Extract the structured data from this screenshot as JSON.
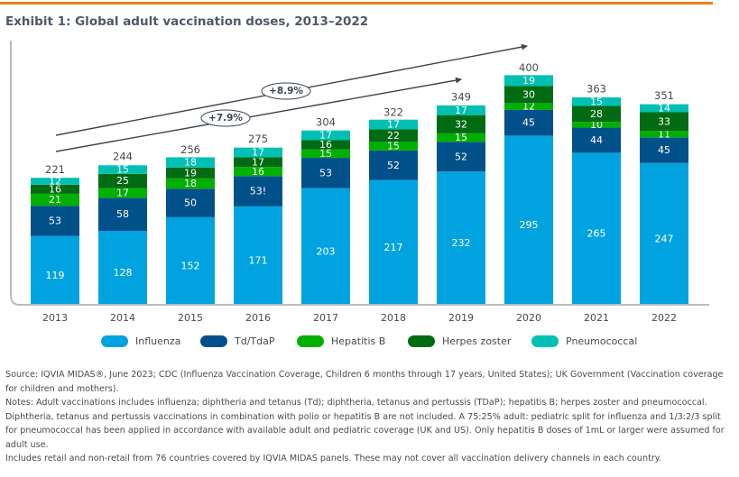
{
  "header": {
    "title": "Exhibit 1: Global adult vaccination doses, 2013–2022",
    "accent_color": "#f07d1a"
  },
  "chart_data": {
    "type": "bar",
    "stacked": true,
    "title": "Exhibit 1: Global adult vaccination doses, 2013–2022",
    "xlabel": "",
    "ylabel": "",
    "ylim": [
      0,
      400
    ],
    "grid": false,
    "legend_position": "bottom",
    "categories": [
      "2013",
      "2014",
      "2015",
      "2016",
      "2017",
      "2018",
      "2019",
      "2020",
      "2021",
      "2022"
    ],
    "series": [
      {
        "name": "Influenza",
        "color": "#00a3e0",
        "values": [
          119,
          128,
          152,
          171,
          203,
          217,
          232,
          295,
          265,
          247
        ],
        "labels": [
          "119",
          "128",
          "152",
          "171",
          "203",
          "217",
          "232",
          "295",
          "265",
          "247"
        ]
      },
      {
        "name": "Td/TdaP",
        "color": "#00508a",
        "values": [
          53,
          58,
          50,
          53,
          53,
          52,
          52,
          45,
          44,
          45
        ],
        "labels": [
          "53",
          "58",
          "50",
          "53!",
          "53",
          "52",
          "52",
          "45",
          "44",
          "45"
        ]
      },
      {
        "name": "Hepatitis B",
        "color": "#00b000",
        "values": [
          21,
          17,
          18,
          16,
          15,
          15,
          15,
          12,
          10,
          11
        ],
        "labels": [
          "21",
          "17",
          "18",
          "16",
          "15",
          "15",
          "15",
          "12",
          "10",
          "11"
        ]
      },
      {
        "name": "Herpes zoster",
        "color": "#006b12",
        "values": [
          16,
          25,
          19,
          17,
          16,
          22,
          32,
          30,
          28,
          33
        ],
        "labels": [
          "16",
          "25",
          "19",
          "17",
          "16",
          "22",
          "32",
          "30",
          "28",
          "33"
        ]
      },
      {
        "name": "Pneumococcal",
        "color": "#00bfb3",
        "values": [
          12,
          15,
          18,
          17,
          17,
          17,
          17,
          19,
          15,
          14
        ],
        "labels": [
          "12",
          "15",
          "18",
          "17",
          "17",
          "17",
          "17",
          "19",
          "15",
          "14"
        ]
      }
    ],
    "totals": [
      221,
      244,
      256,
      275,
      304,
      322,
      349,
      400,
      363,
      351
    ],
    "annotations": [
      {
        "text": "+8.9%",
        "description": "CAGR arrow 2013–2020"
      },
      {
        "text": "+7.9%",
        "description": "CAGR arrow 2013–2022"
      }
    ]
  },
  "legend": {
    "items": [
      {
        "label": "Influenza",
        "color": "#00a3e0"
      },
      {
        "label": "Td/TdaP",
        "color": "#00508a"
      },
      {
        "label": "Hepatitis B",
        "color": "#00b000"
      },
      {
        "label": "Herpes zoster",
        "color": "#006b12"
      },
      {
        "label": "Pneumococcal",
        "color": "#00bfb3"
      }
    ]
  },
  "footnotes": {
    "source": "Source: IQVIA MIDAS®, June 2023; CDC (Influenza Vaccination Coverage, Children 6 months through 17 years, United States); UK Government (Vaccination coverage for children and mothers).",
    "notes": "Notes: Adult vaccinations includes influenza; diphtheria and tetanus (Td); diphtheria, tetanus and pertussis (TDaP); hepatitis B; herpes zoster and pneumococcal. Diphtheria, tetanus and pertussis vaccinations in combination with polio or hepatitis B are not included. A 75:25% adult: pediatric split for influenza and 1/3:2/3 split for pneumococcal has been applied in accordance with available adult and pediatric coverage (UK and US). Only hepatitis B doses of 1mL or larger were assumed for adult use.",
    "coverage": "Includes retail and non-retail from 76 countries covered by IQVIA MIDAS panels. These may not cover all vaccination delivery channels in each country."
  }
}
